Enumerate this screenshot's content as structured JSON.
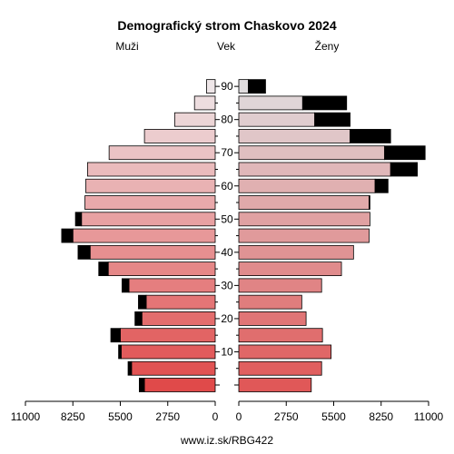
{
  "chart_data": {
    "type": "bar",
    "title": "Demografický strom Chaskovo 2024",
    "left_label": "Muži",
    "center_label": "Vek",
    "right_label": "Ženy",
    "footer": "www.iz.sk/RBG422",
    "age_groups": [
      "0-4",
      "5-9",
      "10-14",
      "15-19",
      "20-24",
      "25-29",
      "30-34",
      "35-39",
      "40-44",
      "45-49",
      "50-54",
      "55-59",
      "60-64",
      "65-69",
      "70-74",
      "75-79",
      "80-84",
      "85-89",
      "90+"
    ],
    "age_tick_labels": [
      "90",
      "80",
      "70",
      "60",
      "50",
      "40",
      "30",
      "20",
      "10"
    ],
    "axis_ticks": [
      "11000",
      "8250",
      "5500",
      "2750",
      "0",
      "2750",
      "5500",
      "8250",
      "11000"
    ],
    "xlim": [
      0,
      11000
    ],
    "series": [
      {
        "name": "Muži",
        "values": [
          4100,
          4850,
          5450,
          5500,
          4250,
          4000,
          5000,
          6200,
          7250,
          8250,
          7750,
          7550,
          7500,
          7400,
          6150,
          4100,
          2350,
          1200,
          500
        ],
        "excess": [
          300,
          200,
          150,
          550,
          400,
          450,
          400,
          550,
          700,
          650,
          350,
          0,
          0,
          0,
          0,
          0,
          0,
          0,
          0
        ]
      },
      {
        "name": "Ženy",
        "values": [
          4200,
          4800,
          5350,
          4850,
          3900,
          3650,
          4800,
          5950,
          6650,
          7550,
          7600,
          7550,
          7900,
          8800,
          8450,
          6450,
          4400,
          3700,
          550
        ],
        "excess": [
          0,
          0,
          0,
          0,
          0,
          0,
          0,
          0,
          0,
          0,
          0,
          50,
          750,
          1550,
          2350,
          2350,
          2050,
          2550,
          1000
        ]
      }
    ]
  }
}
